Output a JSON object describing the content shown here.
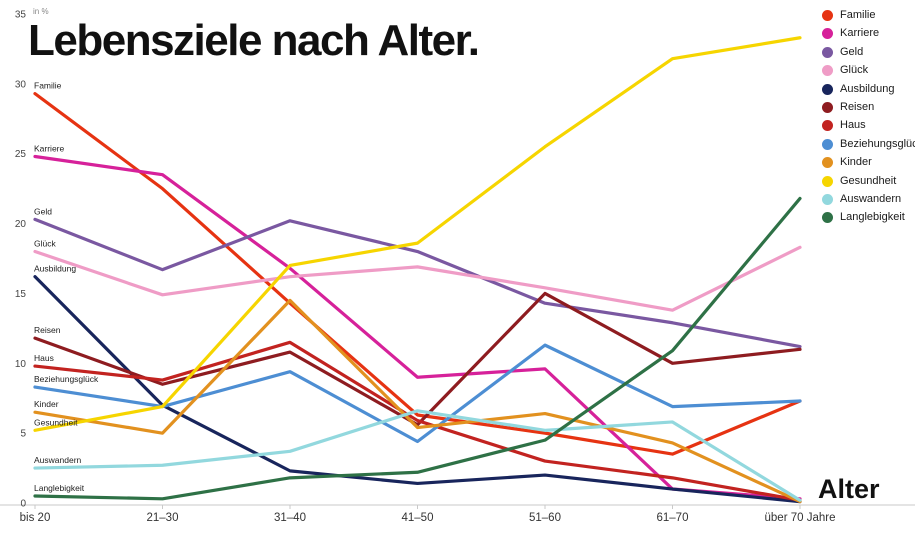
{
  "title": "Lebensziele nach Alter.",
  "y_axis_unit": "in %",
  "x_axis_title": "Alter",
  "chart_data": {
    "type": "line",
    "title": "Lebensziele nach Alter.",
    "xlabel": "Alter",
    "ylabel": "in %",
    "ylim": [
      0,
      35
    ],
    "yticks": [
      0,
      5,
      10,
      15,
      20,
      25,
      30,
      35
    ],
    "grid": false,
    "legend_position": "right",
    "categories": [
      "bis 20",
      "21–30",
      "31–40",
      "41–50",
      "51–60",
      "61–70",
      "über 70 Jahre"
    ],
    "series": [
      {
        "name": "Familie",
        "color": "#e63312",
        "values": [
          29.3,
          22.5,
          14.3,
          6.3,
          5.0,
          3.5,
          7.3
        ]
      },
      {
        "name": "Karriere",
        "color": "#d6219a",
        "values": [
          24.8,
          23.5,
          16.8,
          9.0,
          9.6,
          1.0,
          0.3
        ]
      },
      {
        "name": "Geld",
        "color": "#7a58a1",
        "values": [
          20.3,
          16.7,
          20.2,
          18.0,
          14.3,
          12.9,
          11.2
        ]
      },
      {
        "name": "Glück",
        "color": "#ef9cc6",
        "values": [
          18.0,
          14.9,
          16.2,
          16.9,
          15.4,
          13.8,
          18.3
        ]
      },
      {
        "name": "Ausbildung",
        "color": "#18255c",
        "values": [
          16.2,
          7.0,
          2.3,
          1.4,
          2.0,
          1.0,
          0.1
        ]
      },
      {
        "name": "Reisen",
        "color": "#8e1c20",
        "values": [
          11.8,
          8.5,
          10.8,
          5.6,
          15.0,
          10.0,
          11.0
        ]
      },
      {
        "name": "Haus",
        "color": "#c22320",
        "values": [
          9.8,
          8.8,
          11.5,
          5.9,
          3.0,
          1.8,
          0.2
        ]
      },
      {
        "name": "Beziehungsglück",
        "color": "#4d8ed3",
        "values": [
          8.3,
          6.9,
          9.4,
          4.4,
          11.3,
          6.9,
          7.3
        ]
      },
      {
        "name": "Kinder",
        "color": "#e2911f",
        "values": [
          6.5,
          5.0,
          14.5,
          5.4,
          6.4,
          4.3,
          0.1
        ]
      },
      {
        "name": "Gesundheit",
        "color": "#f6d500",
        "values": [
          5.2,
          6.9,
          17.0,
          18.6,
          25.5,
          31.8,
          33.3
        ]
      },
      {
        "name": "Auswandern",
        "color": "#92d8de",
        "values": [
          2.5,
          2.7,
          3.7,
          6.6,
          5.2,
          5.8,
          0.2
        ]
      },
      {
        "name": "Langlebigkeit",
        "color": "#2e7146",
        "values": [
          0.5,
          0.3,
          1.8,
          2.2,
          4.5,
          10.9,
          21.8
        ]
      }
    ]
  }
}
